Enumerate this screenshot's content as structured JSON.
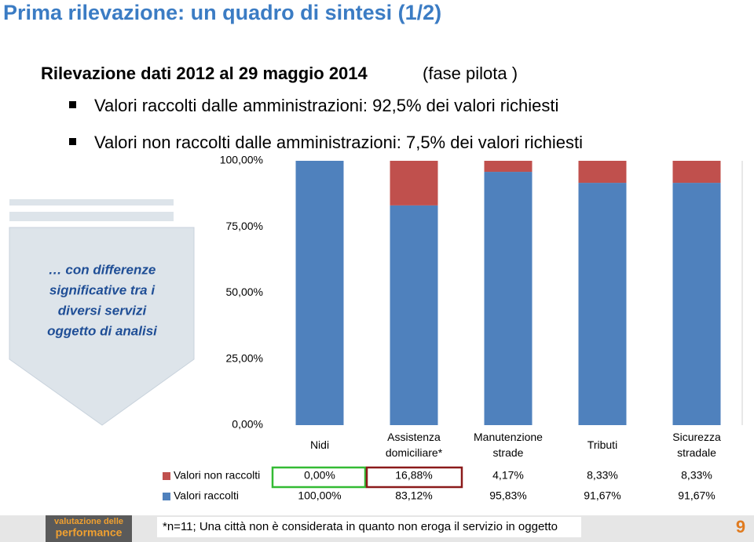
{
  "header": {
    "title": "Prima rilevazione: un quadro di sintesi (1/2)",
    "subtitle_bold": "Rilevazione dati 2012 al 29 maggio 2014",
    "subtitle_normal": "(fase  pilota )"
  },
  "bullets": [
    "Valori raccolti dalle amministrazioni: 92,5% dei valori richiesti",
    "Valori non raccolti dalle amministrazioni: 7,5% dei valori richiesti"
  ],
  "arrow_text": [
    "… con differenze",
    "significative tra i",
    "diversi servizi",
    "oggetto di analisi"
  ],
  "footnote": "*n=11; Una città non è considerata in quanto non eroga il servizio in oggetto",
  "logo": [
    "valutazione delle",
    "performance"
  ],
  "page_number": "9",
  "chart_data": {
    "type": "bar",
    "stacked": true,
    "categories": [
      "Nidi",
      "Assistenza domiciliare*",
      "Manutenzione strade",
      "Tributi",
      "Sicurezza stradale"
    ],
    "series": [
      {
        "name": "Valori non raccolti",
        "color": "#c0504d",
        "values": [
          0,
          16.88,
          4.17,
          8.33,
          8.33
        ],
        "value_labels": [
          "0,00%",
          "16,88%",
          "4,17%",
          "8,33%",
          "8,33%"
        ]
      },
      {
        "name": "Valori raccolti",
        "color": "#4f81bd",
        "values": [
          100,
          83.12,
          95.83,
          91.67,
          91.67
        ],
        "value_labels": [
          "100,00%",
          "83,12%",
          "95,83%",
          "91,67%",
          "91,67%"
        ]
      }
    ],
    "ylim": [
      0,
      100
    ],
    "yticks": [
      {
        "value": 0,
        "label": "0,00%"
      },
      {
        "value": 25,
        "label": "25,00%"
      },
      {
        "value": 50,
        "label": "50,00%"
      },
      {
        "value": 75,
        "label": "75,00%"
      },
      {
        "value": 100,
        "label": "100,00%"
      }
    ]
  }
}
